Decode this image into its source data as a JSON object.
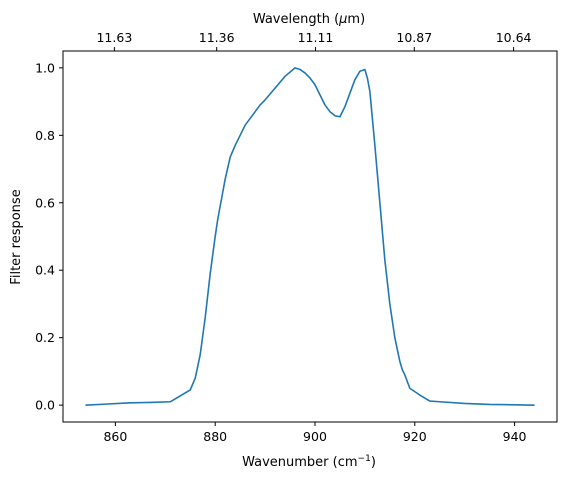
{
  "chart_data": {
    "type": "line",
    "xlabel": "Wavenumber (cm",
    "xlabel_sup": "−1",
    "xlabel_end": ")",
    "ylabel": "Filter response",
    "top_xlabel": "Wavelength (",
    "top_xlabel_mu": "μ",
    "top_xlabel_end": "m)",
    "xlim": [
      849.5,
      948.5
    ],
    "ylim": [
      -0.05,
      1.05
    ],
    "xticks": [
      860,
      880,
      900,
      920,
      940
    ],
    "xtick_labels": [
      "860",
      "880",
      "900",
      "920",
      "940"
    ],
    "yticks": [
      0.0,
      0.2,
      0.4,
      0.6,
      0.8,
      1.0
    ],
    "ytick_labels": [
      "0.0",
      "0.2",
      "0.4",
      "0.6",
      "0.8",
      "1.0"
    ],
    "top_xticks": [
      859.8,
      880.3,
      900.1,
      919.9,
      939.8
    ],
    "top_xtick_labels": [
      "11.63",
      "11.36",
      "11.11",
      "10.87",
      "10.64"
    ],
    "line_color": "#1f77b4",
    "grid": false,
    "legend": false,
    "series": [
      {
        "x": [
          854,
          858,
          863,
          867,
          871,
          875,
          876,
          877,
          878,
          879,
          880,
          880.5,
          881,
          882,
          883,
          884,
          885,
          886,
          887,
          888,
          889,
          890,
          892,
          894,
          896,
          897,
          898,
          899,
          900,
          901,
          902,
          903,
          904,
          905,
          906,
          907,
          908,
          909,
          910,
          910.5,
          911,
          911.5,
          912,
          913,
          914,
          915,
          916,
          917,
          917.5,
          918,
          919,
          920,
          921,
          923,
          925,
          930,
          935,
          940,
          944
        ],
        "y": [
          0.0,
          0.003,
          0.007,
          0.008,
          0.01,
          0.045,
          0.08,
          0.15,
          0.26,
          0.39,
          0.5,
          0.55,
          0.59,
          0.67,
          0.735,
          0.77,
          0.8,
          0.83,
          0.85,
          0.87,
          0.89,
          0.905,
          0.94,
          0.975,
          1.0,
          0.995,
          0.985,
          0.97,
          0.95,
          0.92,
          0.89,
          0.87,
          0.858,
          0.855,
          0.885,
          0.925,
          0.965,
          0.99,
          0.995,
          0.97,
          0.93,
          0.85,
          0.77,
          0.6,
          0.43,
          0.3,
          0.2,
          0.13,
          0.105,
          0.09,
          0.05,
          0.04,
          0.03,
          0.012,
          0.01,
          0.005,
          0.002,
          0.001,
          0.0
        ]
      }
    ]
  }
}
